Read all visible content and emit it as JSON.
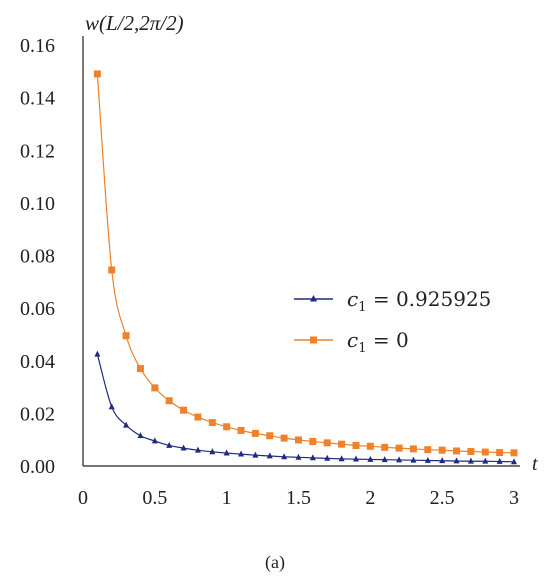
{
  "chart_data": {
    "type": "line",
    "ylabel": "w(L/2,2π/2)",
    "xlabel": "t",
    "xlim": [
      0,
      3
    ],
    "ylim": [
      0,
      0.16
    ],
    "xticks": [
      "0",
      "0.5",
      "1",
      "1.5",
      "2",
      "2.5",
      "3"
    ],
    "yticks": [
      "0.00",
      "0.02",
      "0.04",
      "0.06",
      "0.08",
      "0.10",
      "0.12",
      "0.14",
      "0.16"
    ],
    "grid": false,
    "legend_position": "right",
    "x": [
      0.1,
      0.2,
      0.3,
      0.4,
      0.5,
      0.6,
      0.7,
      0.8,
      0.9,
      1.0,
      1.1,
      1.2,
      1.3,
      1.4,
      1.5,
      1.6,
      1.7,
      1.8,
      1.9,
      2.0,
      2.1,
      2.2,
      2.3,
      2.4,
      2.5,
      2.6,
      2.7,
      2.8,
      2.9,
      3.0
    ],
    "series": [
      {
        "name_sub": "1",
        "name_base": "c",
        "name_rest": " = 0.925925",
        "color": "#1f2a80",
        "marker": "triangle",
        "values": [
          0.0425,
          0.0225,
          0.0155,
          0.0115,
          0.0095,
          0.0078,
          0.0068,
          0.006,
          0.0054,
          0.0049,
          0.0045,
          0.0041,
          0.0038,
          0.0035,
          0.0033,
          0.0031,
          0.0029,
          0.0027,
          0.0026,
          0.0025,
          0.0024,
          0.0023,
          0.0022,
          0.0021,
          0.002,
          0.0019,
          0.0018,
          0.0018,
          0.0017,
          0.0016
        ]
      },
      {
        "name_sub": "1",
        "name_base": "c",
        "name_rest": " = 0",
        "color": "#f0812a",
        "marker": "square",
        "values": [
          0.149,
          0.0745,
          0.0495,
          0.037,
          0.0297,
          0.0248,
          0.0212,
          0.0186,
          0.0165,
          0.0149,
          0.0135,
          0.0124,
          0.0115,
          0.0106,
          0.0099,
          0.0093,
          0.0088,
          0.0083,
          0.0078,
          0.0075,
          0.0071,
          0.0068,
          0.0065,
          0.0062,
          0.006,
          0.0057,
          0.0055,
          0.0053,
          0.0051,
          0.005
        ]
      }
    ]
  },
  "caption": "(a)"
}
